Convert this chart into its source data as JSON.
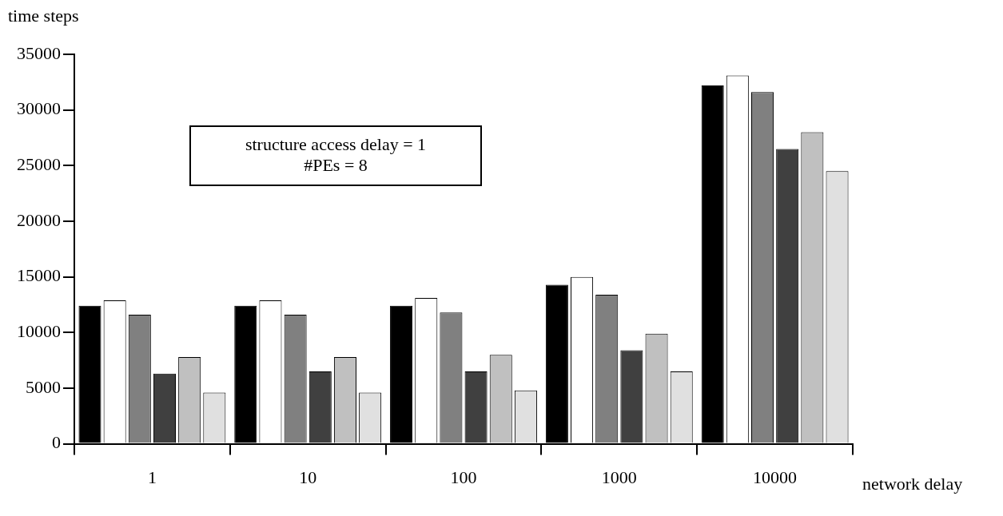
{
  "chart_data": {
    "type": "bar",
    "ylabel": "time steps",
    "xlabel": "network delay",
    "categories": [
      "1",
      "10",
      "100",
      "1000",
      "10000"
    ],
    "series": [
      {
        "color": "#000000",
        "values": [
          12400,
          12400,
          12400,
          14300,
          32200
        ]
      },
      {
        "color": "#ffffff",
        "values": [
          12900,
          12900,
          13100,
          15000,
          33100
        ]
      },
      {
        "color": "#808080",
        "values": [
          11600,
          11600,
          11800,
          13400,
          31600
        ]
      },
      {
        "color": "#404040",
        "values": [
          6300,
          6500,
          6500,
          8400,
          26500
        ]
      },
      {
        "color": "#c0c0c0",
        "values": [
          7800,
          7800,
          8000,
          9900,
          28000
        ]
      },
      {
        "color": "#e0e0e0",
        "values": [
          4600,
          4600,
          4800,
          6500,
          24500
        ]
      }
    ],
    "ylim": [
      0,
      35000
    ],
    "yticks": [
      0,
      5000,
      10000,
      15000,
      20000,
      25000,
      30000,
      35000
    ],
    "grid": false,
    "legend": false,
    "annotations": [
      "structure access delay = 1",
      "#PEs = 8"
    ]
  }
}
